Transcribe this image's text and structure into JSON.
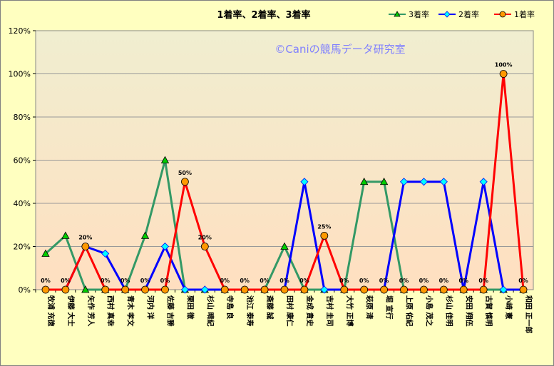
{
  "chart_data": {
    "type": "line",
    "title": "1着率、2着率、3着率",
    "watermark": "©Caniの競馬データ研究室",
    "ylim": [
      0,
      1.2
    ],
    "yticks": [
      "0%",
      "20%",
      "40%",
      "60%",
      "80%",
      "100%",
      "120%"
    ],
    "categories": [
      "牧浦 充徳",
      "伊藤 大士",
      "矢作 芳人",
      "西村 真幸",
      "青木 孝文",
      "河内 洋",
      "佐藤 吉勝",
      "栗田 徹",
      "杉山 晴紀",
      "寺島 良",
      "池江 泰寿",
      "斎藤 誠",
      "田村 康仁",
      "金成 貴史",
      "吉村 圭司",
      "大竹 正博",
      "萩原 清",
      "堀 宣行",
      "上原 佑紀",
      "小島 茂之",
      "杉山 佳明",
      "安田 翔伍",
      "古賀 慎明",
      "小崎 憲",
      "和田 正一郎"
    ],
    "legend": [
      "3着率",
      "2着率",
      "1着率"
    ],
    "grid": true,
    "legend_position": "top-right",
    "series": [
      {
        "name": "3着率",
        "color": "#339966",
        "marker": "triangle",
        "marker_color": "#00cc00",
        "values": [
          0.167,
          0.25,
          0,
          0,
          0,
          0.25,
          0.6,
          0,
          0,
          0,
          0,
          0,
          0.2,
          0,
          0,
          0,
          0.5,
          0.5,
          0,
          0,
          0,
          0,
          0,
          0,
          0
        ]
      },
      {
        "name": "2着率",
        "color": "#0000ff",
        "marker": "diamond",
        "marker_color": "#00ffff",
        "values": [
          0,
          0,
          0.2,
          0.167,
          0,
          0,
          0.2,
          0,
          0,
          0,
          0,
          0,
          0,
          0.5,
          0,
          0,
          0,
          0,
          0.5,
          0.5,
          0.5,
          0,
          0.5,
          0,
          0
        ]
      },
      {
        "name": "1着率",
        "color": "#ff0000",
        "marker": "circle",
        "marker_color": "#ff9900",
        "values": [
          0,
          0,
          0.2,
          0,
          0,
          0,
          0,
          0.5,
          0.2,
          0,
          0,
          0,
          0,
          0,
          0.25,
          0,
          0,
          0,
          0,
          0,
          0,
          0,
          0,
          1.0,
          0
        ]
      }
    ],
    "data_labels": [
      "0%",
      "0%",
      "20%",
      "0%",
      "0%",
      "0%",
      "0%",
      "50%",
      "20%",
      "0%",
      "0%",
      "0%",
      "0%",
      "0%",
      "25%",
      "0%",
      "0%",
      "0%",
      "0%",
      "0%",
      "0%",
      "0%",
      "0%",
      "100%",
      "0%"
    ],
    "colors": {
      "background": "#ffffc0",
      "plot_top": "#eeeecc",
      "plot_bottom": "#ffe0c0",
      "grid": "#aaaaaa"
    }
  }
}
